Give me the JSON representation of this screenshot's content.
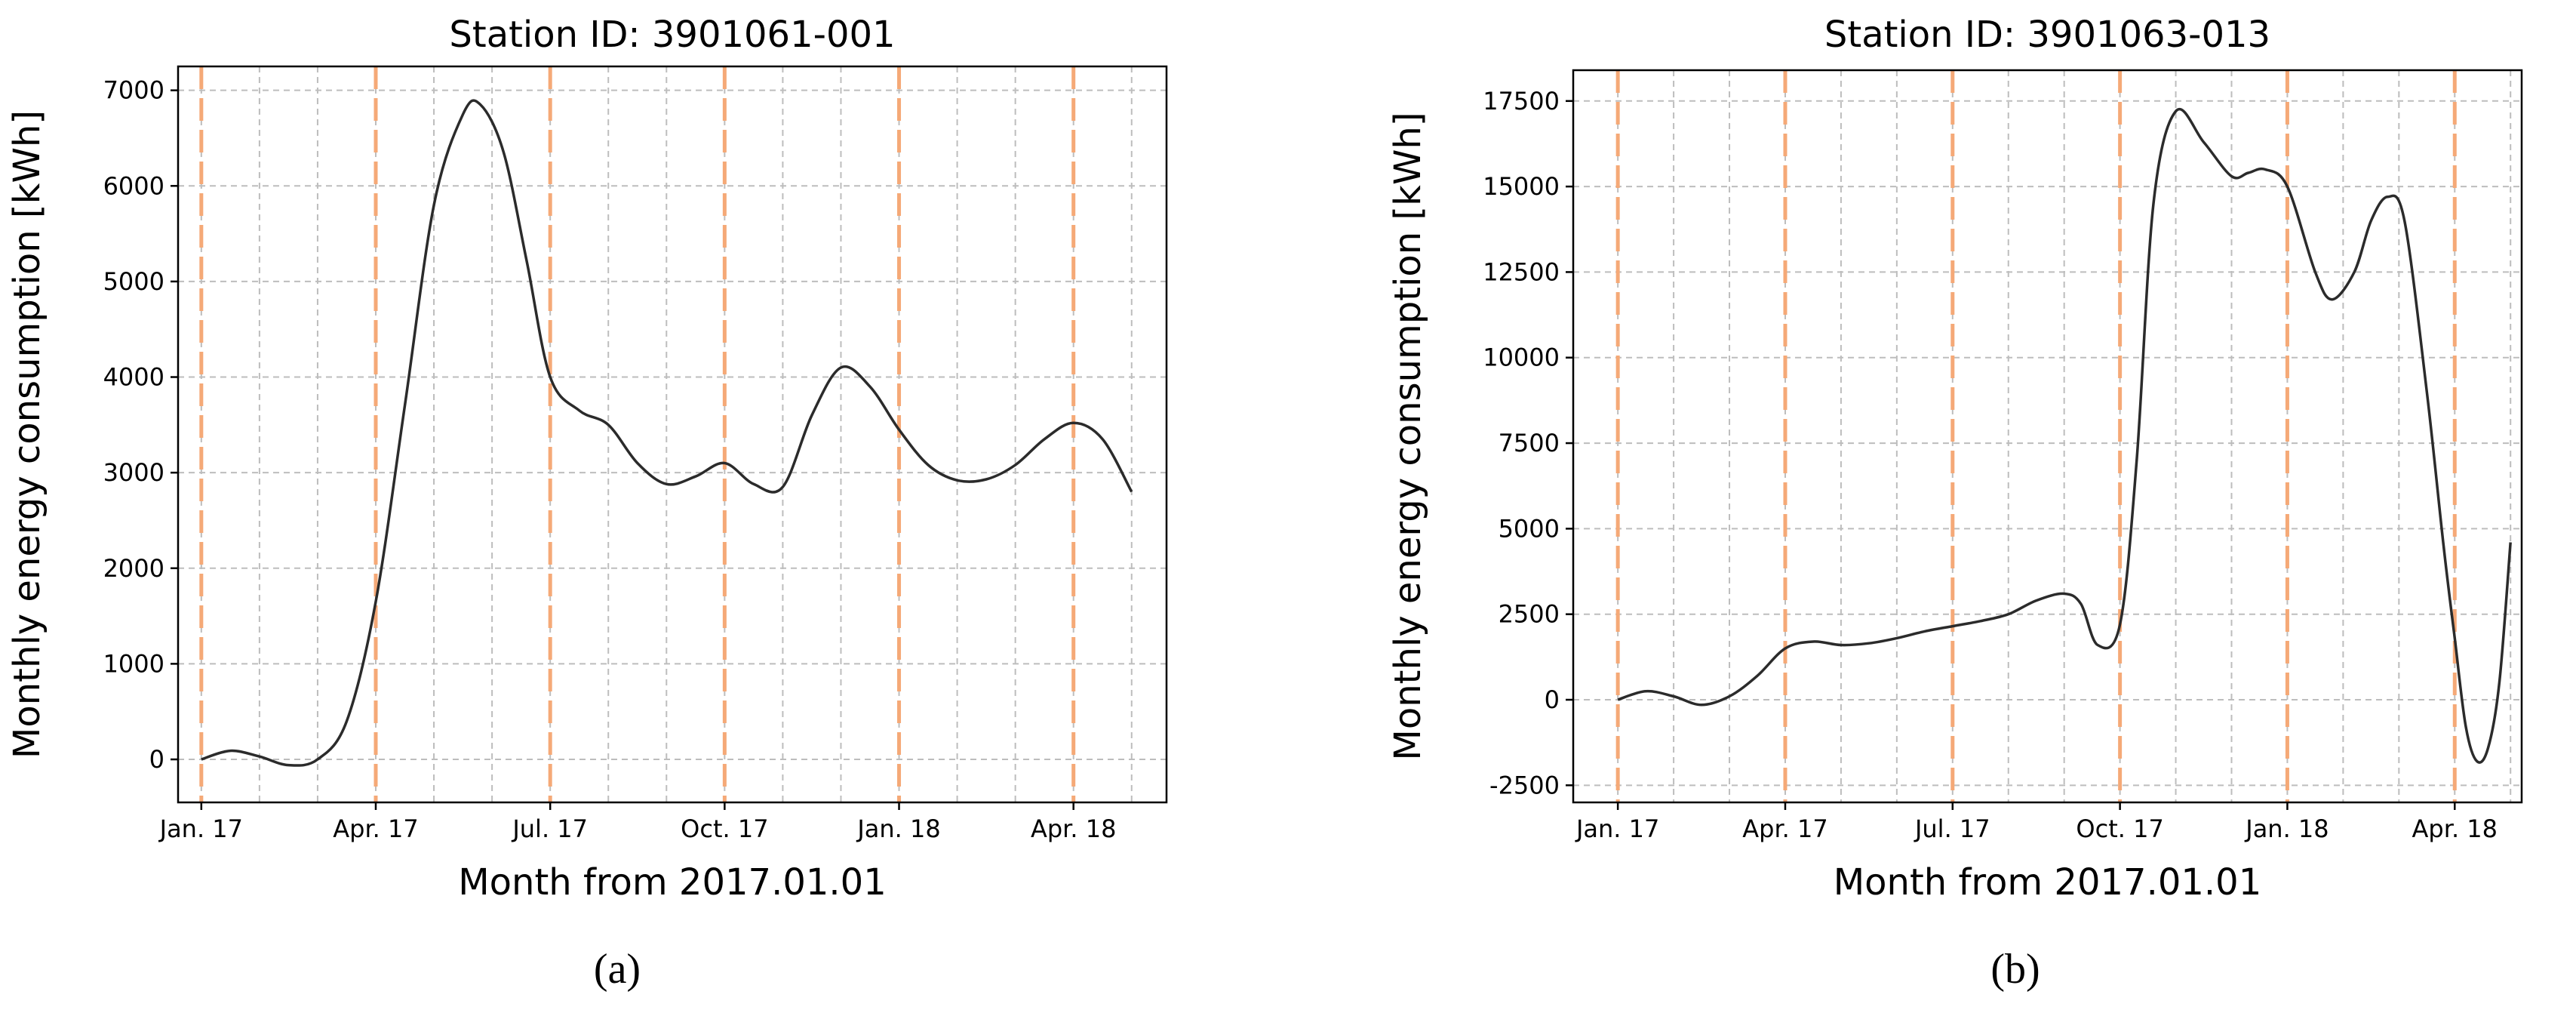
{
  "chart_data": [
    {
      "type": "line",
      "panel_label": "(a)",
      "title": "Station ID: 3901061-001",
      "xlabel": "Month from 2017.01.01",
      "ylabel": "Monthly energy consumption [kWh]",
      "xlim": [
        -0.4,
        16.6
      ],
      "ylim": [
        -450,
        7250
      ],
      "x_ticks": [
        0,
        3,
        6,
        9,
        12,
        15
      ],
      "x_tick_labels": [
        "Jan. 17",
        "Apr. 17",
        "Jul. 17",
        "Oct. 17",
        "Jan. 18",
        "Apr. 18"
      ],
      "x_minor_grid": [
        1,
        2,
        4,
        5,
        7,
        8,
        10,
        11,
        13,
        14,
        16
      ],
      "y_ticks": [
        0,
        1000,
        2000,
        3000,
        4000,
        5000,
        6000,
        7000
      ],
      "y_tick_labels": [
        "0",
        "1000",
        "2000",
        "3000",
        "4000",
        "5000",
        "6000",
        "7000"
      ],
      "vlines": [
        0,
        3,
        6,
        9,
        12,
        15
      ],
      "grid": true,
      "colors": {
        "line": "#2b2b2b",
        "vline": "#f5a977",
        "grid": "#bdbdbd"
      },
      "series": [
        {
          "x": [
            0,
            0.5,
            1,
            1.5,
            2,
            2.5,
            3,
            3.5,
            4,
            4.5,
            4.8,
            5.2,
            5.6,
            6,
            6.5,
            7,
            7.5,
            8,
            8.5,
            9,
            9.5,
            10,
            10.5,
            11,
            11.5,
            12,
            12.5,
            13,
            13.5,
            14,
            14.5,
            15,
            15.5,
            16
          ],
          "y": [
            0,
            90,
            30,
            -60,
            0,
            400,
            1650,
            3700,
            5800,
            6750,
            6850,
            6350,
            5200,
            4000,
            3650,
            3500,
            3100,
            2880,
            2960,
            3100,
            2880,
            2850,
            3600,
            4100,
            3900,
            3450,
            3080,
            2920,
            2930,
            3080,
            3350,
            3520,
            3350,
            2800
          ]
        }
      ]
    },
    {
      "type": "line",
      "panel_label": "(b)",
      "title": "Station ID: 3901063-013",
      "xlabel": "Month from 2017.01.01",
      "ylabel": "Monthly energy consumption [kWh]",
      "xlim": [
        -0.8,
        16.2
      ],
      "ylim": [
        -3000,
        18400
      ],
      "x_ticks": [
        0,
        3,
        6,
        9,
        12,
        15
      ],
      "x_tick_labels": [
        "Jan. 17",
        "Apr. 17",
        "Jul. 17",
        "Oct. 17",
        "Jan. 18",
        "Apr. 18"
      ],
      "x_minor_grid": [
        1,
        2,
        4,
        5,
        7,
        8,
        10,
        11,
        13,
        14,
        16
      ],
      "y_ticks": [
        -2500,
        0,
        2500,
        5000,
        7500,
        10000,
        12500,
        15000,
        17500
      ],
      "y_tick_labels": [
        "-2500",
        "0",
        "2500",
        "5000",
        "7500",
        "10000",
        "12500",
        "15000",
        "17500"
      ],
      "vlines": [
        0,
        3,
        6,
        9,
        12,
        15
      ],
      "grid": true,
      "colors": {
        "line": "#2b2b2b",
        "vline": "#f5a977",
        "grid": "#bdbdbd"
      },
      "series": [
        {
          "x": [
            0,
            0.5,
            1,
            1.5,
            2,
            2.5,
            3,
            3.5,
            4,
            4.5,
            5,
            5.5,
            6,
            6.5,
            7,
            7.5,
            8,
            8.3,
            8.6,
            9,
            9.3,
            9.6,
            10,
            10.5,
            11,
            11.3,
            11.6,
            12,
            12.5,
            12.8,
            13.2,
            13.5,
            13.8,
            14.1,
            14.5,
            14.8,
            15,
            15.2,
            15.4,
            15.6,
            15.8,
            16
          ],
          "y": [
            0,
            250,
            100,
            -150,
            100,
            700,
            1500,
            1700,
            1600,
            1650,
            1800,
            2000,
            2150,
            2300,
            2500,
            2900,
            3100,
            2800,
            1600,
            2200,
            7000,
            14500,
            17200,
            16300,
            15300,
            15400,
            15500,
            15000,
            12500,
            11700,
            12500,
            14000,
            14700,
            14000,
            9000,
            4500,
            1800,
            -800,
            -1800,
            -1400,
            500,
            4600
          ]
        }
      ]
    }
  ]
}
